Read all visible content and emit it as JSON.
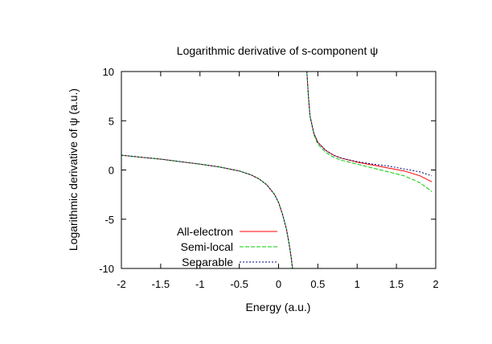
{
  "chart_data": {
    "type": "line",
    "title": "Logarithmic derivative of s-component ψ",
    "xlabel": "Energy (a.u.)",
    "ylabel": "Logarithmic derivative of ψ (a.u.)",
    "xlim": [
      -2,
      2
    ],
    "ylim": [
      -10,
      10
    ],
    "xticks": [
      "-2",
      "-1.5",
      "-1",
      "-0.5",
      "0",
      "0.5",
      "1",
      "1.5",
      "2"
    ],
    "yticks": [
      "-10",
      "-5",
      "0",
      "5",
      "10"
    ],
    "grid": false,
    "legend_position": "bottom-left",
    "series": [
      {
        "name": "All-electron",
        "color": "#ff0000",
        "dash": "solid",
        "x": [
          -2,
          -1.75,
          -1.5,
          -1.25,
          -1,
          -0.75,
          -0.5,
          -0.35,
          -0.25,
          -0.15,
          -0.05,
          0,
          0.05,
          0.1,
          0.13,
          0.16,
          0.18,
          0.19,
          0.35,
          0.36,
          0.38,
          0.4,
          0.45,
          0.5,
          0.6,
          0.7,
          0.8,
          1.0,
          1.2,
          1.4,
          1.6,
          1.8,
          1.95
        ],
        "y": [
          1.5,
          1.3,
          1.1,
          0.85,
          0.6,
          0.3,
          -0.1,
          -0.5,
          -0.9,
          -1.5,
          -2.5,
          -3.3,
          -4.5,
          -6.0,
          -7.3,
          -8.8,
          -10.2,
          -11,
          11,
          10,
          7.5,
          5.5,
          3.7,
          2.8,
          2.0,
          1.5,
          1.2,
          0.8,
          0.5,
          0.2,
          -0.1,
          -0.6,
          -1.2
        ]
      },
      {
        "name": "Semi-local",
        "color": "#00cc00",
        "dash": "dashed",
        "x": [
          -2,
          -1.75,
          -1.5,
          -1.25,
          -1,
          -0.75,
          -0.5,
          -0.35,
          -0.25,
          -0.15,
          -0.05,
          0,
          0.05,
          0.1,
          0.13,
          0.16,
          0.18,
          0.19,
          0.35,
          0.36,
          0.38,
          0.4,
          0.45,
          0.5,
          0.6,
          0.7,
          0.8,
          1.0,
          1.2,
          1.4,
          1.6,
          1.8,
          1.95
        ],
        "y": [
          1.5,
          1.3,
          1.1,
          0.85,
          0.6,
          0.3,
          -0.1,
          -0.5,
          -0.9,
          -1.5,
          -2.5,
          -3.3,
          -4.5,
          -6.0,
          -7.3,
          -8.8,
          -10.2,
          -11,
          11,
          10,
          7.5,
          5.4,
          3.6,
          2.6,
          1.8,
          1.3,
          1.0,
          0.6,
          0.2,
          -0.2,
          -0.6,
          -1.3,
          -2.2
        ]
      },
      {
        "name": "Separable",
        "color": "#000080",
        "dash": "dotted",
        "x": [
          -2,
          -1.75,
          -1.5,
          -1.25,
          -1,
          -0.75,
          -0.5,
          -0.35,
          -0.25,
          -0.15,
          -0.05,
          0,
          0.05,
          0.1,
          0.13,
          0.16,
          0.18,
          0.19,
          0.35,
          0.36,
          0.38,
          0.4,
          0.45,
          0.5,
          0.6,
          0.7,
          0.8,
          1.0,
          1.2,
          1.4,
          1.6,
          1.8,
          1.95
        ],
        "y": [
          1.5,
          1.3,
          1.1,
          0.85,
          0.6,
          0.3,
          -0.1,
          -0.5,
          -0.9,
          -1.5,
          -2.5,
          -3.3,
          -4.5,
          -6.0,
          -7.3,
          -8.8,
          -10.2,
          -11,
          11,
          10,
          7.5,
          5.5,
          3.7,
          2.8,
          2.0,
          1.5,
          1.2,
          0.85,
          0.6,
          0.4,
          0.1,
          -0.2,
          -0.6
        ]
      }
    ]
  }
}
